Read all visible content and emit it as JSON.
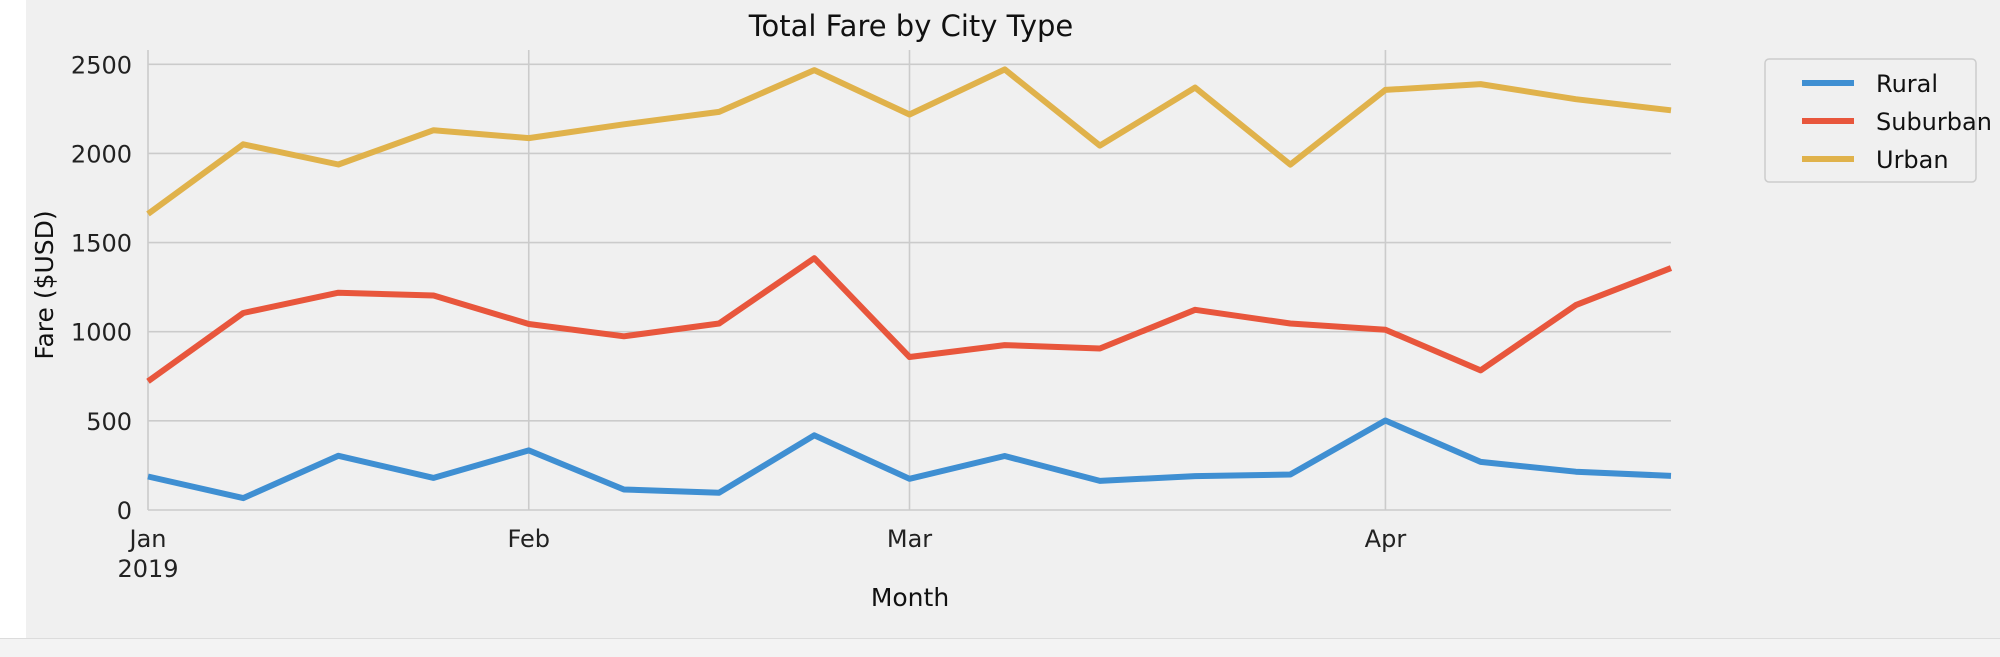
{
  "chart_data": {
    "type": "line",
    "title": "Total Fare by City Type",
    "xlabel": "Month",
    "ylabel": "Fare ($USD)",
    "x": [
      "2019-01-06",
      "2019-01-13",
      "2019-01-20",
      "2019-01-27",
      "2019-02-03",
      "2019-02-10",
      "2019-02-17",
      "2019-02-24",
      "2019-03-03",
      "2019-03-10",
      "2019-03-17",
      "2019-03-24",
      "2019-03-31",
      "2019-04-07",
      "2019-04-14",
      "2019-04-21",
      "2019-04-28"
    ],
    "xlim": [
      "2019-01-06",
      "2019-04-28"
    ],
    "ylim": [
      0,
      2580
    ],
    "yticks": [
      0,
      500,
      1000,
      1500,
      2000,
      2500
    ],
    "xticks": [
      {
        "date": "2019-01-06",
        "label": "Jan",
        "sublabel": "2019"
      },
      {
        "date": "2019-02-03",
        "label": "Feb",
        "sublabel": ""
      },
      {
        "date": "2019-03-03",
        "label": "Mar",
        "sublabel": ""
      },
      {
        "date": "2019-04-07",
        "label": "Apr",
        "sublabel": ""
      }
    ],
    "grid": true,
    "legend_position": "upper-right-outside",
    "series": [
      {
        "name": "Rural",
        "color": "#3f8fd2",
        "values": [
          188,
          67,
          304,
          180,
          334,
          115,
          97,
          419,
          175,
          303,
          163,
          190,
          199,
          502,
          270,
          215,
          191
        ]
      },
      {
        "name": "Suburban",
        "color": "#e8563c",
        "values": [
          722,
          1105,
          1219,
          1203,
          1043,
          974,
          1046,
          1412,
          858,
          925,
          906,
          1123,
          1046,
          1011,
          783,
          1149,
          1357
        ]
      },
      {
        "name": "Urban",
        "color": "#e0b24b",
        "values": [
          1661,
          2051,
          1938,
          2130,
          2086,
          2163,
          2233,
          2467,
          2218,
          2471,
          2044,
          2369,
          1937,
          2356,
          2389,
          2304,
          2242
        ]
      }
    ]
  }
}
